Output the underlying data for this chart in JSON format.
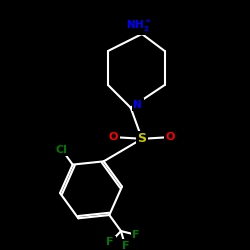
{
  "background_color": "#000000",
  "bond_color": "#ffffff",
  "colors": {
    "N": "#0000ff",
    "O": "#ff0000",
    "S": "#c8c800",
    "Cl": "#007700",
    "F": "#007700"
  },
  "figsize": [
    2.5,
    2.5
  ],
  "dpi": 100,
  "bond_lw": 1.5,
  "font_size": 7.5
}
